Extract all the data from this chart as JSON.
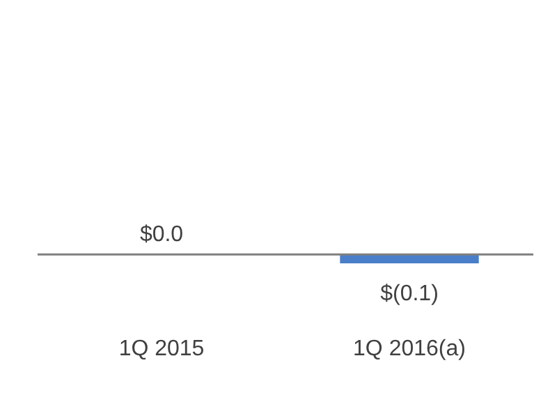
{
  "chart_data": {
    "type": "bar",
    "categories": [
      "1Q 2015",
      "1Q 2016(a)"
    ],
    "values": [
      0.0,
      -0.1
    ],
    "color": "#4a7ec8",
    "value_labels": [
      "$0.0",
      "$(0.1)"
    ],
    "legend": false,
    "grid": false
  }
}
